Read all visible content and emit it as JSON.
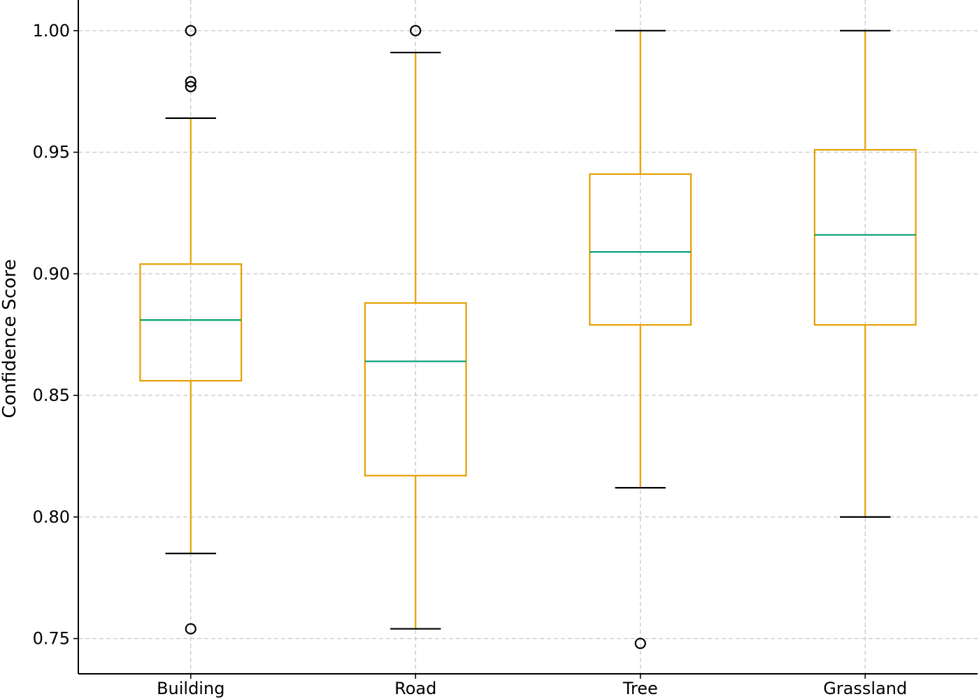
{
  "chart_data": {
    "type": "box",
    "title": "",
    "xlabel": "",
    "ylabel": "Confidence Score",
    "ylim": [
      0.7355,
      1.0126
    ],
    "yticks": [
      0.75,
      0.8,
      0.85,
      0.9,
      0.95,
      1.0
    ],
    "ytick_labels": [
      "0.75",
      "0.80",
      "0.85",
      "0.90",
      "0.95",
      "1.00"
    ],
    "grid": true,
    "colors": {
      "box": "#e69f00",
      "median": "#009e73",
      "cap": "#000000",
      "flier": "#000000"
    },
    "categories": [
      "Building",
      "Road",
      "Tree",
      "Grassland"
    ],
    "boxes": [
      {
        "label": "Building",
        "whisker_low": 0.785,
        "q1": 0.856,
        "median": 0.881,
        "q3": 0.904,
        "whisker_high": 0.964,
        "fliers": [
          1.0,
          0.979,
          0.977,
          0.754
        ]
      },
      {
        "label": "Road",
        "whisker_low": 0.754,
        "q1": 0.817,
        "median": 0.864,
        "q3": 0.888,
        "whisker_high": 0.991,
        "fliers": [
          1.0
        ]
      },
      {
        "label": "Tree",
        "whisker_low": 0.812,
        "q1": 0.879,
        "median": 0.909,
        "q3": 0.941,
        "whisker_high": 1.0,
        "fliers": [
          0.748
        ]
      },
      {
        "label": "Grassland",
        "whisker_low": 0.8,
        "q1": 0.879,
        "median": 0.916,
        "q3": 0.951,
        "whisker_high": 1.0,
        "fliers": []
      }
    ]
  }
}
